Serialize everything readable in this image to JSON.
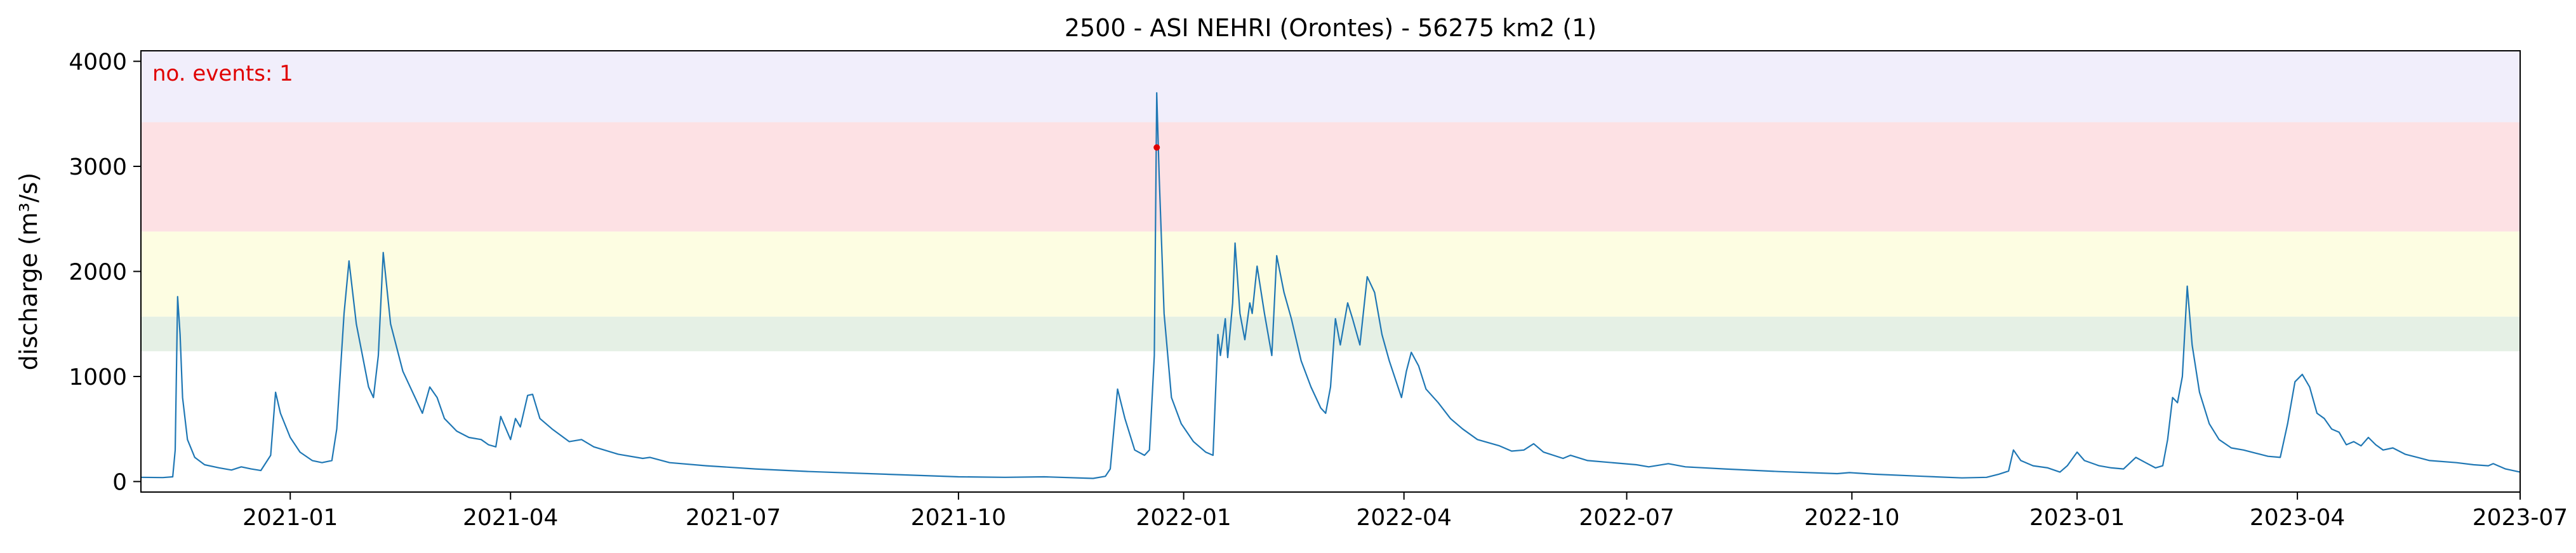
{
  "chart_data": {
    "type": "line",
    "title": "2500 - ASI NEHRI (Orontes) - 56275 km2 (1)",
    "xlabel": "",
    "ylabel": "discharge (m³/s)",
    "xlim": [
      "2020-11-01",
      "2023-07-01"
    ],
    "ylim": [
      -100,
      4100
    ],
    "grid": false,
    "x_ticks": [
      "2021-01",
      "2021-04",
      "2021-07",
      "2021-10",
      "2022-01",
      "2022-04",
      "2022-07",
      "2022-10",
      "2023-01",
      "2023-04",
      "2023-07"
    ],
    "y_ticks": [
      0,
      1000,
      2000,
      3000,
      4000
    ],
    "annotation": "no. events: 1",
    "threshold_bands": [
      {
        "from": 1240,
        "to": 1570,
        "color": "#e5f0e5"
      },
      {
        "from": 1570,
        "to": 2380,
        "color": "#fdfde2"
      },
      {
        "from": 2380,
        "to": 3420,
        "color": "#fde1e4"
      },
      {
        "from": 3420,
        "to": 4100,
        "color": "#f1eefb"
      }
    ],
    "events": [
      {
        "x": "2021-12-21",
        "y": 3180,
        "color": "#e00000"
      }
    ],
    "series": [
      {
        "color": "#1f77b4",
        "points": [
          [
            "2020-11-01",
            40
          ],
          [
            "2020-11-10",
            38
          ],
          [
            "2020-11-14",
            45
          ],
          [
            "2020-11-15",
            300
          ],
          [
            "2020-11-16",
            1760
          ],
          [
            "2020-11-17",
            1400
          ],
          [
            "2020-11-18",
            800
          ],
          [
            "2020-11-20",
            400
          ],
          [
            "2020-11-23",
            230
          ],
          [
            "2020-11-27",
            160
          ],
          [
            "2020-12-03",
            130
          ],
          [
            "2020-12-08",
            110
          ],
          [
            "2020-12-12",
            140
          ],
          [
            "2020-12-16",
            120
          ],
          [
            "2020-12-20",
            105
          ],
          [
            "2020-12-24",
            250
          ],
          [
            "2020-12-26",
            850
          ],
          [
            "2020-12-28",
            650
          ],
          [
            "2021-01-01",
            420
          ],
          [
            "2021-01-05",
            280
          ],
          [
            "2021-01-10",
            200
          ],
          [
            "2021-01-14",
            180
          ],
          [
            "2021-01-18",
            200
          ],
          [
            "2021-01-20",
            500
          ],
          [
            "2021-01-23",
            1600
          ],
          [
            "2021-01-25",
            2100
          ],
          [
            "2021-01-28",
            1500
          ],
          [
            "2021-02-02",
            900
          ],
          [
            "2021-02-04",
            800
          ],
          [
            "2021-02-06",
            1200
          ],
          [
            "2021-02-08",
            2180
          ],
          [
            "2021-02-11",
            1500
          ],
          [
            "2021-02-16",
            1050
          ],
          [
            "2021-02-20",
            850
          ],
          [
            "2021-02-24",
            650
          ],
          [
            "2021-02-27",
            900
          ],
          [
            "2021-03-02",
            800
          ],
          [
            "2021-03-05",
            600
          ],
          [
            "2021-03-10",
            480
          ],
          [
            "2021-03-15",
            420
          ],
          [
            "2021-03-20",
            400
          ],
          [
            "2021-03-23",
            350
          ],
          [
            "2021-03-26",
            330
          ],
          [
            "2021-03-28",
            620
          ],
          [
            "2021-04-01",
            400
          ],
          [
            "2021-04-03",
            600
          ],
          [
            "2021-04-05",
            520
          ],
          [
            "2021-04-08",
            820
          ],
          [
            "2021-04-10",
            830
          ],
          [
            "2021-04-13",
            600
          ],
          [
            "2021-04-18",
            500
          ],
          [
            "2021-04-25",
            380
          ],
          [
            "2021-04-30",
            400
          ],
          [
            "2021-05-05",
            330
          ],
          [
            "2021-05-15",
            260
          ],
          [
            "2021-05-25",
            220
          ],
          [
            "2021-05-28",
            230
          ],
          [
            "2021-06-05",
            180
          ],
          [
            "2021-06-20",
            150
          ],
          [
            "2021-07-10",
            120
          ],
          [
            "2021-08-01",
            95
          ],
          [
            "2021-09-01",
            70
          ],
          [
            "2021-10-01",
            45
          ],
          [
            "2021-10-20",
            40
          ],
          [
            "2021-11-05",
            45
          ],
          [
            "2021-11-25",
            30
          ],
          [
            "2021-11-30",
            50
          ],
          [
            "2021-12-02",
            120
          ],
          [
            "2021-12-05",
            880
          ],
          [
            "2021-12-08",
            600
          ],
          [
            "2021-12-12",
            300
          ],
          [
            "2021-12-16",
            250
          ],
          [
            "2021-12-18",
            300
          ],
          [
            "2021-12-20",
            1200
          ],
          [
            "2021-12-21",
            3700
          ],
          [
            "2021-12-22",
            2900
          ],
          [
            "2021-12-24",
            1600
          ],
          [
            "2021-12-27",
            800
          ],
          [
            "2021-12-31",
            550
          ],
          [
            "2022-01-05",
            380
          ],
          [
            "2022-01-10",
            280
          ],
          [
            "2022-01-13",
            250
          ],
          [
            "2022-01-15",
            1400
          ],
          [
            "2022-01-16",
            1200
          ],
          [
            "2022-01-18",
            1550
          ],
          [
            "2022-01-19",
            1180
          ],
          [
            "2022-01-21",
            1700
          ],
          [
            "2022-01-22",
            2270
          ],
          [
            "2022-01-24",
            1600
          ],
          [
            "2022-01-26",
            1350
          ],
          [
            "2022-01-28",
            1700
          ],
          [
            "2022-01-29",
            1600
          ],
          [
            "2022-01-31",
            2050
          ],
          [
            "2022-02-03",
            1600
          ],
          [
            "2022-02-06",
            1200
          ],
          [
            "2022-02-08",
            2150
          ],
          [
            "2022-02-11",
            1800
          ],
          [
            "2022-02-14",
            1550
          ],
          [
            "2022-02-18",
            1150
          ],
          [
            "2022-02-22",
            900
          ],
          [
            "2022-02-26",
            700
          ],
          [
            "2022-02-28",
            650
          ],
          [
            "2022-03-02",
            900
          ],
          [
            "2022-03-04",
            1550
          ],
          [
            "2022-03-06",
            1300
          ],
          [
            "2022-03-09",
            1700
          ],
          [
            "2022-03-11",
            1550
          ],
          [
            "2022-03-14",
            1300
          ],
          [
            "2022-03-17",
            1950
          ],
          [
            "2022-03-20",
            1800
          ],
          [
            "2022-03-23",
            1400
          ],
          [
            "2022-03-26",
            1150
          ],
          [
            "2022-03-31",
            800
          ],
          [
            "2022-04-02",
            1050
          ],
          [
            "2022-04-04",
            1230
          ],
          [
            "2022-04-07",
            1100
          ],
          [
            "2022-04-10",
            880
          ],
          [
            "2022-04-15",
            750
          ],
          [
            "2022-04-20",
            600
          ],
          [
            "2022-04-25",
            500
          ],
          [
            "2022-05-01",
            400
          ],
          [
            "2022-05-10",
            340
          ],
          [
            "2022-05-15",
            290
          ],
          [
            "2022-05-20",
            300
          ],
          [
            "2022-05-24",
            360
          ],
          [
            "2022-05-28",
            280
          ],
          [
            "2022-06-05",
            220
          ],
          [
            "2022-06-08",
            250
          ],
          [
            "2022-06-15",
            200
          ],
          [
            "2022-06-25",
            180
          ],
          [
            "2022-07-05",
            160
          ],
          [
            "2022-07-10",
            140
          ],
          [
            "2022-07-18",
            170
          ],
          [
            "2022-07-25",
            140
          ],
          [
            "2022-08-10",
            120
          ],
          [
            "2022-09-01",
            95
          ],
          [
            "2022-09-25",
            75
          ],
          [
            "2022-09-30",
            85
          ],
          [
            "2022-10-10",
            70
          ],
          [
            "2022-10-30",
            50
          ],
          [
            "2022-11-15",
            35
          ],
          [
            "2022-11-25",
            40
          ],
          [
            "2022-11-30",
            70
          ],
          [
            "2022-12-04",
            100
          ],
          [
            "2022-12-06",
            300
          ],
          [
            "2022-12-09",
            200
          ],
          [
            "2022-12-14",
            150
          ],
          [
            "2022-12-20",
            130
          ],
          [
            "2022-12-25",
            90
          ],
          [
            "2022-12-28",
            150
          ],
          [
            "2023-01-01",
            280
          ],
          [
            "2023-01-04",
            200
          ],
          [
            "2023-01-10",
            150
          ],
          [
            "2023-01-15",
            130
          ],
          [
            "2023-01-20",
            120
          ],
          [
            "2023-01-25",
            230
          ],
          [
            "2023-01-29",
            180
          ],
          [
            "2023-02-02",
            130
          ],
          [
            "2023-02-05",
            150
          ],
          [
            "2023-02-07",
            400
          ],
          [
            "2023-02-09",
            800
          ],
          [
            "2023-02-11",
            750
          ],
          [
            "2023-02-13",
            1000
          ],
          [
            "2023-02-15",
            1860
          ],
          [
            "2023-02-17",
            1300
          ],
          [
            "2023-02-20",
            850
          ],
          [
            "2023-02-24",
            550
          ],
          [
            "2023-02-28",
            400
          ],
          [
            "2023-03-05",
            320
          ],
          [
            "2023-03-10",
            300
          ],
          [
            "2023-03-15",
            270
          ],
          [
            "2023-03-20",
            240
          ],
          [
            "2023-03-25",
            230
          ],
          [
            "2023-03-28",
            550
          ],
          [
            "2023-03-31",
            950
          ],
          [
            "2023-04-03",
            1020
          ],
          [
            "2023-04-06",
            900
          ],
          [
            "2023-04-09",
            650
          ],
          [
            "2023-04-12",
            600
          ],
          [
            "2023-04-15",
            500
          ],
          [
            "2023-04-18",
            470
          ],
          [
            "2023-04-21",
            350
          ],
          [
            "2023-04-24",
            380
          ],
          [
            "2023-04-27",
            340
          ],
          [
            "2023-04-30",
            420
          ],
          [
            "2023-05-03",
            350
          ],
          [
            "2023-05-06",
            300
          ],
          [
            "2023-05-10",
            320
          ],
          [
            "2023-05-15",
            260
          ],
          [
            "2023-05-25",
            200
          ],
          [
            "2023-06-05",
            180
          ],
          [
            "2023-06-12",
            160
          ],
          [
            "2023-06-18",
            150
          ],
          [
            "2023-06-20",
            170
          ],
          [
            "2023-06-25",
            120
          ],
          [
            "2023-07-01",
            90
          ]
        ]
      }
    ]
  }
}
